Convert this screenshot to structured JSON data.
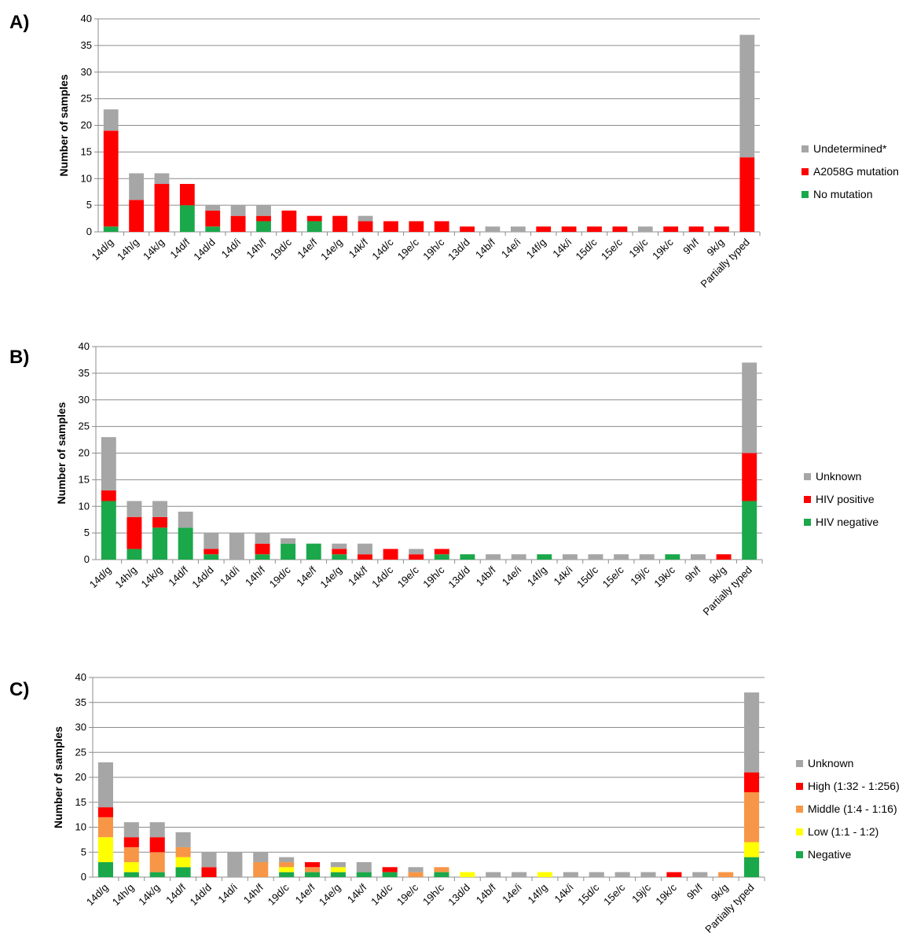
{
  "chart_data": [
    {
      "type": "bar",
      "stacked": true,
      "panel_label": "A)",
      "xlabel": "",
      "ylabel": "Number of samples",
      "ylim": [
        0,
        40
      ],
      "yticks": [
        0,
        5,
        10,
        15,
        20,
        25,
        30,
        35,
        40
      ],
      "grid": "horizontal",
      "legend_position": "right",
      "categories": [
        "14d/g",
        "14h/g",
        "14k/g",
        "14d/f",
        "14d/d",
        "14d/i",
        "14h/f",
        "19d/c",
        "14e/f",
        "14e/g",
        "14k/f",
        "14d/c",
        "19e/c",
        "19h/c",
        "13d/d",
        "14b/f",
        "14e/i",
        "14f/g",
        "14k/i",
        "15d/c",
        "15e/c",
        "19j/c",
        "19k/c",
        "9h/f",
        "9k/g",
        "Partially typed"
      ],
      "series": [
        {
          "name": "No mutation",
          "color": "#1aa84a",
          "values": [
            1,
            0,
            0,
            5,
            1,
            0,
            2,
            0,
            2,
            0,
            0,
            0,
            0,
            0,
            0,
            0,
            0,
            0,
            0,
            0,
            0,
            0,
            0,
            0,
            0,
            0
          ]
        },
        {
          "name": "A2058G mutation",
          "color": "#ff0000",
          "values": [
            18,
            6,
            9,
            4,
            3,
            3,
            1,
            4,
            1,
            3,
            2,
            2,
            2,
            2,
            1,
            0,
            0,
            1,
            1,
            1,
            1,
            0,
            1,
            1,
            1,
            14
          ]
        },
        {
          "name": "Undetermined*",
          "color": "#a6a6a6",
          "values": [
            4,
            5,
            2,
            0,
            1,
            2,
            2,
            0,
            0,
            0,
            1,
            0,
            0,
            0,
            0,
            1,
            1,
            0,
            0,
            0,
            0,
            1,
            0,
            0,
            0,
            23
          ]
        }
      ]
    },
    {
      "type": "bar",
      "stacked": true,
      "panel_label": "B)",
      "xlabel": "",
      "ylabel": "Number of samples",
      "ylim": [
        0,
        40
      ],
      "yticks": [
        0,
        5,
        10,
        15,
        20,
        25,
        30,
        35,
        40
      ],
      "grid": "horizontal",
      "legend_position": "right",
      "categories": [
        "14d/g",
        "14h/g",
        "14k/g",
        "14d/f",
        "14d/d",
        "14d/i",
        "14h/f",
        "19d/c",
        "14e/f",
        "14e/g",
        "14k/f",
        "14d/c",
        "19e/c",
        "19h/c",
        "13d/d",
        "14b/f",
        "14e/i",
        "14f/g",
        "14k/i",
        "15d/c",
        "15e/c",
        "19j/c",
        "19k/c",
        "9h/f",
        "9k/g",
        "Partially typed"
      ],
      "series": [
        {
          "name": "HIV negative",
          "color": "#1aa84a",
          "values": [
            11,
            2,
            6,
            6,
            1,
            0,
            1,
            3,
            3,
            1,
            0,
            0,
            0,
            1,
            1,
            0,
            0,
            1,
            0,
            0,
            0,
            0,
            1,
            0,
            0,
            11
          ]
        },
        {
          "name": "HIV positive",
          "color": "#ff0000",
          "values": [
            2,
            6,
            2,
            0,
            1,
            0,
            2,
            0,
            0,
            1,
            1,
            2,
            1,
            1,
            0,
            0,
            0,
            0,
            0,
            0,
            0,
            0,
            0,
            0,
            1,
            9
          ]
        },
        {
          "name": "Unknown",
          "color": "#a6a6a6",
          "values": [
            10,
            3,
            3,
            3,
            3,
            5,
            2,
            1,
            0,
            1,
            2,
            0,
            1,
            0,
            0,
            1,
            1,
            0,
            1,
            1,
            1,
            1,
            0,
            1,
            0,
            17
          ]
        }
      ]
    },
    {
      "type": "bar",
      "stacked": true,
      "panel_label": "C)",
      "xlabel": "",
      "ylabel": "Number of samples",
      "ylim": [
        0,
        40
      ],
      "yticks": [
        0,
        5,
        10,
        15,
        20,
        25,
        30,
        35,
        40
      ],
      "grid": "horizontal",
      "legend_position": "right",
      "categories": [
        "14d/g",
        "14h/g",
        "14k/g",
        "14d/f",
        "14d/d",
        "14d/i",
        "14h/f",
        "19d/c",
        "14e/f",
        "14e/g",
        "14k/f",
        "14d/c",
        "19e/c",
        "19h/c",
        "13d/d",
        "14b/f",
        "14e/i",
        "14f/g",
        "14k/i",
        "15d/c",
        "15e/c",
        "19j/c",
        "19k/c",
        "9h/f",
        "9k/g",
        "Partially typed"
      ],
      "series": [
        {
          "name": "Negative",
          "color": "#1aa84a",
          "values": [
            3,
            1,
            1,
            2,
            0,
            0,
            0,
            1,
            1,
            1,
            1,
            1,
            0,
            1,
            0,
            0,
            0,
            0,
            0,
            0,
            0,
            0,
            0,
            0,
            0,
            4
          ]
        },
        {
          "name": "Low (1:1 - 1:2)",
          "color": "#ffff00",
          "values": [
            5,
            2,
            0,
            2,
            0,
            0,
            0,
            1,
            0,
            1,
            0,
            0,
            0,
            0,
            1,
            0,
            0,
            1,
            0,
            0,
            0,
            0,
            0,
            0,
            0,
            3
          ]
        },
        {
          "name": "Middle (1:4 - 1:16)",
          "color": "#f79646",
          "values": [
            4,
            3,
            4,
            2,
            0,
            0,
            3,
            1,
            1,
            0,
            0,
            0,
            1,
            1,
            0,
            0,
            0,
            0,
            0,
            0,
            0,
            0,
            0,
            0,
            1,
            10
          ]
        },
        {
          "name": "High (1:32 - 1:256)",
          "color": "#ff0000",
          "values": [
            2,
            2,
            3,
            0,
            2,
            0,
            0,
            0,
            1,
            0,
            0,
            1,
            0,
            0,
            0,
            0,
            0,
            0,
            0,
            0,
            0,
            0,
            1,
            0,
            0,
            4
          ]
        },
        {
          "name": "Unknown",
          "color": "#a6a6a6",
          "values": [
            9,
            3,
            3,
            3,
            3,
            5,
            2,
            1,
            0,
            1,
            2,
            0,
            1,
            0,
            0,
            1,
            1,
            0,
            1,
            1,
            1,
            1,
            0,
            1,
            0,
            16
          ]
        }
      ]
    }
  ]
}
